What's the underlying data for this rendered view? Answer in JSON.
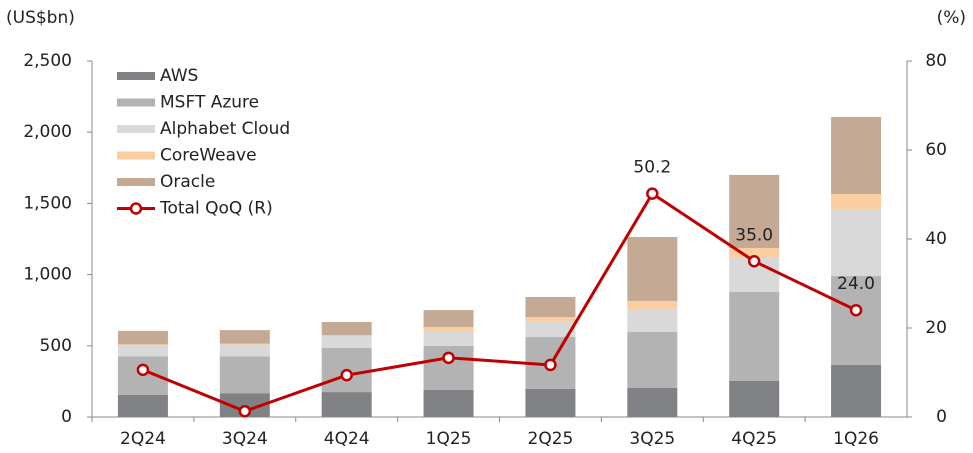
{
  "chart_data": {
    "type": "bar",
    "stacked": true,
    "y_unit_label": "(US$bn)",
    "y2_unit_label": "(%)",
    "categories": [
      "2Q24",
      "3Q24",
      "4Q24",
      "1Q25",
      "2Q25",
      "3Q25",
      "4Q25",
      "1Q26"
    ],
    "series": [
      {
        "name": "AWS",
        "color": "#808285",
        "values": [
          155,
          165,
          175,
          190,
          197,
          204,
          253,
          365
        ]
      },
      {
        "name": "MSFT Azure",
        "color": "#b3b3b3",
        "values": [
          270,
          260,
          310,
          309,
          365,
          393,
          625,
          625
        ]
      },
      {
        "name": "Alphabet Cloud",
        "color": "#d9d9d9",
        "values": [
          80,
          85,
          84,
          105,
          112,
          161,
          239,
          471
        ]
      },
      {
        "name": "CoreWeave",
        "color": "#f9cfa0",
        "values": [
          5,
          5,
          5,
          28,
          28,
          57,
          70,
          105
        ]
      },
      {
        "name": "Oracle",
        "color": "#c4a995",
        "values": [
          95,
          95,
          93,
          119,
          141,
          449,
          513,
          541
        ]
      },
      {
        "name": "Total QoQ (R)",
        "type": "line",
        "axis": "y2",
        "color": "#c00000",
        "values": [
          10.6,
          1.3,
          9.4,
          13.3,
          11.7,
          50.2,
          35.0,
          24.0
        ],
        "value_labels": [
          null,
          null,
          null,
          null,
          null,
          "50.2",
          "35.0",
          "24.0"
        ]
      }
    ],
    "ylim": [
      0,
      2500
    ],
    "yticks": [
      0,
      500,
      {
        "value": 1000,
        "label": "1,000"
      },
      {
        "value": 1500,
        "label": "1,500"
      },
      {
        "value": 2000,
        "label": "2,000"
      },
      {
        "value": 2500,
        "label": "2,500"
      }
    ],
    "y2lim": [
      0,
      80
    ],
    "y2ticks": [
      0,
      20,
      40,
      60,
      80
    ],
    "legend": "upper left",
    "grid": false
  }
}
